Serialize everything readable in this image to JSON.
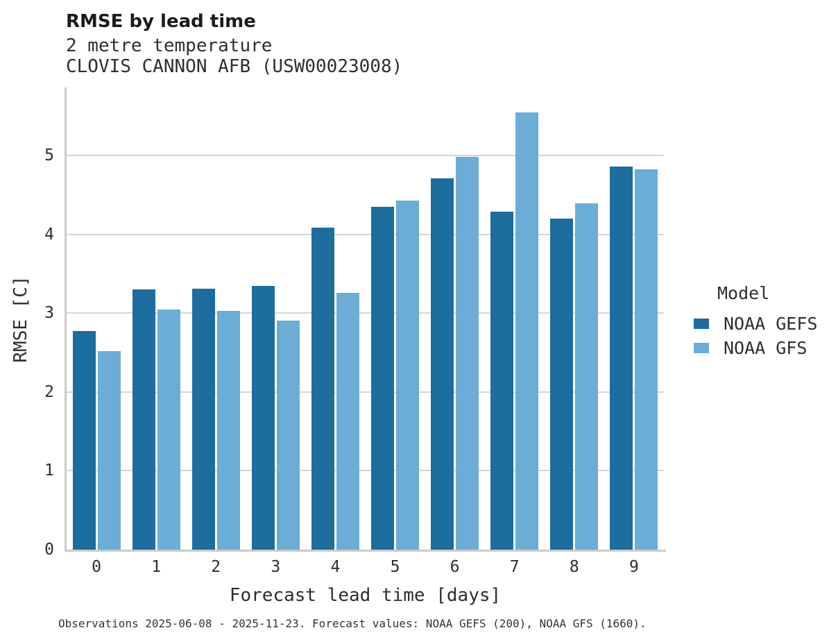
{
  "header": {
    "title": "RMSE by lead time",
    "subtitle_variable": "2 metre temperature",
    "subtitle_station": "CLOVIS CANNON AFB (USW00023008)"
  },
  "footer": {
    "note": "Observations 2025-06-08 - 2025-11-23. Forecast values: NOAA GEFS (200), NOAA GFS (1660)."
  },
  "legend": {
    "title": "Model",
    "entries": [
      {
        "label": "NOAA GEFS",
        "color": "#1d6d9e"
      },
      {
        "label": "NOAA GFS",
        "color": "#6badd6"
      }
    ]
  },
  "colors": {
    "gefs_dark_blue": "#1d6d9e",
    "gfs_light_blue": "#6badd6",
    "gridline_gray": "#d6d6d6",
    "axis_gray": "#cbcbcb",
    "title_text": "#1a1a1a",
    "body_text": "#2e2e2e"
  },
  "chart_data": {
    "type": "bar",
    "title": "RMSE by lead time",
    "subtitle": [
      "2 metre temperature",
      "CLOVIS CANNON AFB (USW00023008)"
    ],
    "categories": [
      "0",
      "1",
      "2",
      "3",
      "4",
      "5",
      "6",
      "7",
      "8",
      "9"
    ],
    "series": [
      {
        "name": "NOAA GEFS",
        "color": "#1d6d9e",
        "values": [
          2.78,
          3.3,
          3.31,
          3.35,
          4.09,
          4.35,
          4.71,
          4.29,
          4.2,
          4.86
        ]
      },
      {
        "name": "NOAA GFS",
        "color": "#6badd6",
        "values": [
          2.52,
          3.05,
          3.03,
          2.91,
          3.26,
          4.43,
          4.99,
          5.55,
          4.4,
          4.83
        ]
      }
    ],
    "xlabel": "Forecast lead time [days]",
    "ylabel": "RMSE [C]",
    "ylim": [
      0,
      5.85
    ],
    "yticks": [
      0,
      1,
      2,
      3,
      4,
      5
    ],
    "grid": true,
    "legend_title": "Model",
    "legend_position": "right"
  }
}
